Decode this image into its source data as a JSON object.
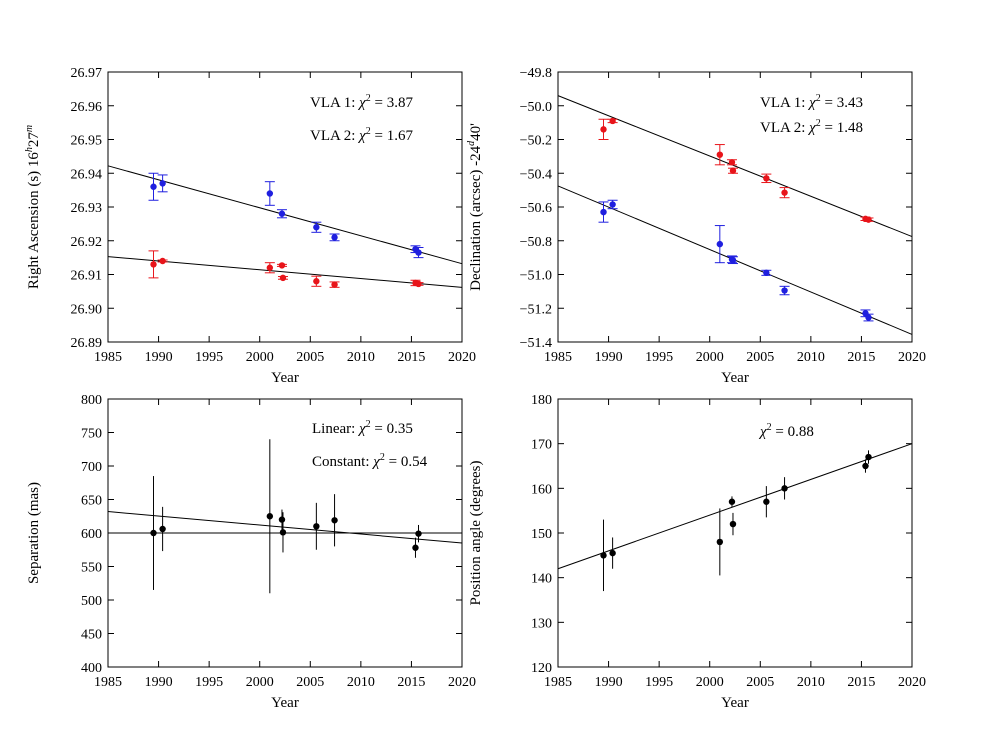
{
  "chart_data": [
    {
      "type": "scatter",
      "xlabel": "Year",
      "ylabel": "Right Ascension (s) 16h27m",
      "xlim": [
        1985,
        2020
      ],
      "ylim": [
        26.89,
        26.97
      ],
      "xticks": [
        "1985",
        "1990",
        "1995",
        "2000",
        "2005",
        "2010",
        "2015",
        "2020"
      ],
      "yticks": [
        "26.89",
        "26.90",
        "26.91",
        "26.92",
        "26.93",
        "26.94",
        "26.95",
        "26.96",
        "26.97"
      ],
      "annotations": [
        {
          "text": "VLA 1: χ² = 3.87",
          "color": "#e8141a"
        },
        {
          "text": "VLA 2: χ² = 1.67",
          "color": "#1f1fdf"
        }
      ],
      "series": [
        {
          "name": "VLA 2",
          "color": "#1f1fdf",
          "points": [
            [
              1989.5,
              26.936,
              0.004
            ],
            [
              1990.4,
              26.937,
              0.0025
            ],
            [
              2001.0,
              26.934,
              0.0035
            ],
            [
              2002.2,
              26.928,
              0.0012
            ],
            [
              2005.6,
              26.924,
              0.0015
            ],
            [
              2007.4,
              26.921,
              0.001
            ],
            [
              2015.4,
              26.9175,
              0.001
            ],
            [
              2015.7,
              26.9165,
              0.0015
            ]
          ],
          "fit": [
            [
              1985,
              26.9422
            ],
            [
              2020,
              26.9132
            ]
          ]
        },
        {
          "name": "VLA 1",
          "color": "#e8141a",
          "points": [
            [
              1989.5,
              26.913,
              0.004
            ],
            [
              1990.4,
              26.914,
              0.0003
            ],
            [
              2001.0,
              26.912,
              0.0015
            ],
            [
              2002.2,
              26.9127,
              0.0003
            ],
            [
              2002.3,
              26.909,
              0.0004
            ],
            [
              2005.6,
              26.908,
              0.0015
            ],
            [
              2007.4,
              26.907,
              0.0008
            ],
            [
              2015.4,
              26.9075,
              0.0008
            ],
            [
              2015.7,
              26.9072,
              0.0004
            ]
          ],
          "fit": [
            [
              1985,
              26.9153
            ],
            [
              2020,
              26.9062
            ]
          ]
        }
      ]
    },
    {
      "type": "scatter",
      "xlabel": "Year",
      "ylabel": "Declination (arcsec) -24d40'",
      "xlim": [
        1985,
        2020
      ],
      "ylim": [
        -51.4,
        -49.8
      ],
      "xticks": [
        "1985",
        "1990",
        "1995",
        "2000",
        "2005",
        "2010",
        "2015",
        "2020"
      ],
      "yticks": [
        "−51.4",
        "−51.2",
        "−51.0",
        "−50.8",
        "−50.6",
        "−50.4",
        "−50.2",
        "−50.0",
        "−49.8"
      ],
      "annotations": [
        {
          "text": "VLA 1: χ² = 3.43",
          "color": "#e8141a"
        },
        {
          "text": "VLA 2: χ² = 1.48",
          "color": "#1f1fdf"
        }
      ],
      "series": [
        {
          "name": "VLA 1",
          "color": "#e8141a",
          "points": [
            [
              1989.5,
              -50.14,
              0.06
            ],
            [
              1990.4,
              -50.09,
              0.01
            ],
            [
              2001.0,
              -50.29,
              0.06
            ],
            [
              2002.2,
              -50.335,
              0.015
            ],
            [
              2002.3,
              -50.385,
              0.015
            ],
            [
              2005.6,
              -50.43,
              0.025
            ],
            [
              2007.4,
              -50.515,
              0.03
            ],
            [
              2015.4,
              -50.67,
              0.01
            ],
            [
              2015.7,
              -50.675,
              0.01
            ]
          ],
          "fit": [
            [
              1985,
              -49.94
            ],
            [
              2020,
              -50.775
            ]
          ]
        },
        {
          "name": "VLA 2",
          "color": "#1f1fdf",
          "points": [
            [
              1989.5,
              -50.63,
              0.06
            ],
            [
              1990.4,
              -50.585,
              0.025
            ],
            [
              2001.0,
              -50.82,
              0.11
            ],
            [
              2002.2,
              -50.91,
              0.02
            ],
            [
              2002.3,
              -50.915,
              0.02
            ],
            [
              2005.6,
              -50.99,
              0.015
            ],
            [
              2007.4,
              -51.095,
              0.025
            ],
            [
              2015.4,
              -51.23,
              0.02
            ],
            [
              2015.7,
              -51.255,
              0.02
            ]
          ],
          "fit": [
            [
              1985,
              -50.475
            ],
            [
              2020,
              -51.355
            ]
          ]
        }
      ]
    },
    {
      "type": "scatter",
      "xlabel": "Year",
      "ylabel": "Separation (mas)",
      "xlim": [
        1985,
        2020
      ],
      "ylim": [
        400,
        800
      ],
      "xticks": [
        "1985",
        "1990",
        "1995",
        "2000",
        "2005",
        "2010",
        "2015",
        "2020"
      ],
      "yticks": [
        "400",
        "450",
        "500",
        "550",
        "600",
        "650",
        "700",
        "750",
        "800"
      ],
      "annotations": [
        {
          "text": "Linear: χ² = 0.35",
          "color": "#000000"
        },
        {
          "text": "Constant: χ² = 0.54",
          "color": "#000000"
        }
      ],
      "series": [
        {
          "name": "Separation",
          "color": "#000000",
          "points": [
            [
              1989.5,
              600,
              85
            ],
            [
              1990.4,
              606,
              33
            ],
            [
              2001.0,
              625,
              115
            ],
            [
              2002.2,
              620,
              15
            ],
            [
              2002.3,
              601,
              30
            ],
            [
              2005.6,
              610,
              35
            ],
            [
              2007.4,
              619,
              39
            ],
            [
              2015.4,
              578,
              15
            ],
            [
              2015.7,
              599,
              13
            ]
          ],
          "fits": [
            [
              [
                1985,
                632
              ],
              [
                2020,
                585
              ]
            ],
            [
              [
                1985,
                600
              ],
              [
                2020,
                600
              ]
            ]
          ]
        }
      ]
    },
    {
      "type": "scatter",
      "xlabel": "Year",
      "ylabel": "Position angle (degrees)",
      "xlim": [
        1985,
        2020
      ],
      "ylim": [
        120,
        180
      ],
      "xticks": [
        "1985",
        "1990",
        "1995",
        "2000",
        "2005",
        "2010",
        "2015",
        "2020"
      ],
      "yticks": [
        "120",
        "130",
        "140",
        "150",
        "160",
        "170",
        "180"
      ],
      "annotations": [
        {
          "text": "χ² = 0.88",
          "color": "#000000"
        }
      ],
      "series": [
        {
          "name": "Position angle",
          "color": "#000000",
          "points": [
            [
              1989.5,
              145,
              8
            ],
            [
              1990.4,
              145.5,
              3.5
            ],
            [
              2001.0,
              148,
              7.5
            ],
            [
              2002.2,
              157,
              1.2
            ],
            [
              2002.3,
              152,
              2.5
            ],
            [
              2005.6,
              157,
              3.5
            ],
            [
              2007.4,
              160,
              2.5
            ],
            [
              2015.4,
              165,
              1.5
            ],
            [
              2015.7,
              167,
              1.5
            ]
          ],
          "fit": [
            [
              1985,
              142
            ],
            [
              2020,
              170
            ]
          ]
        }
      ]
    }
  ]
}
